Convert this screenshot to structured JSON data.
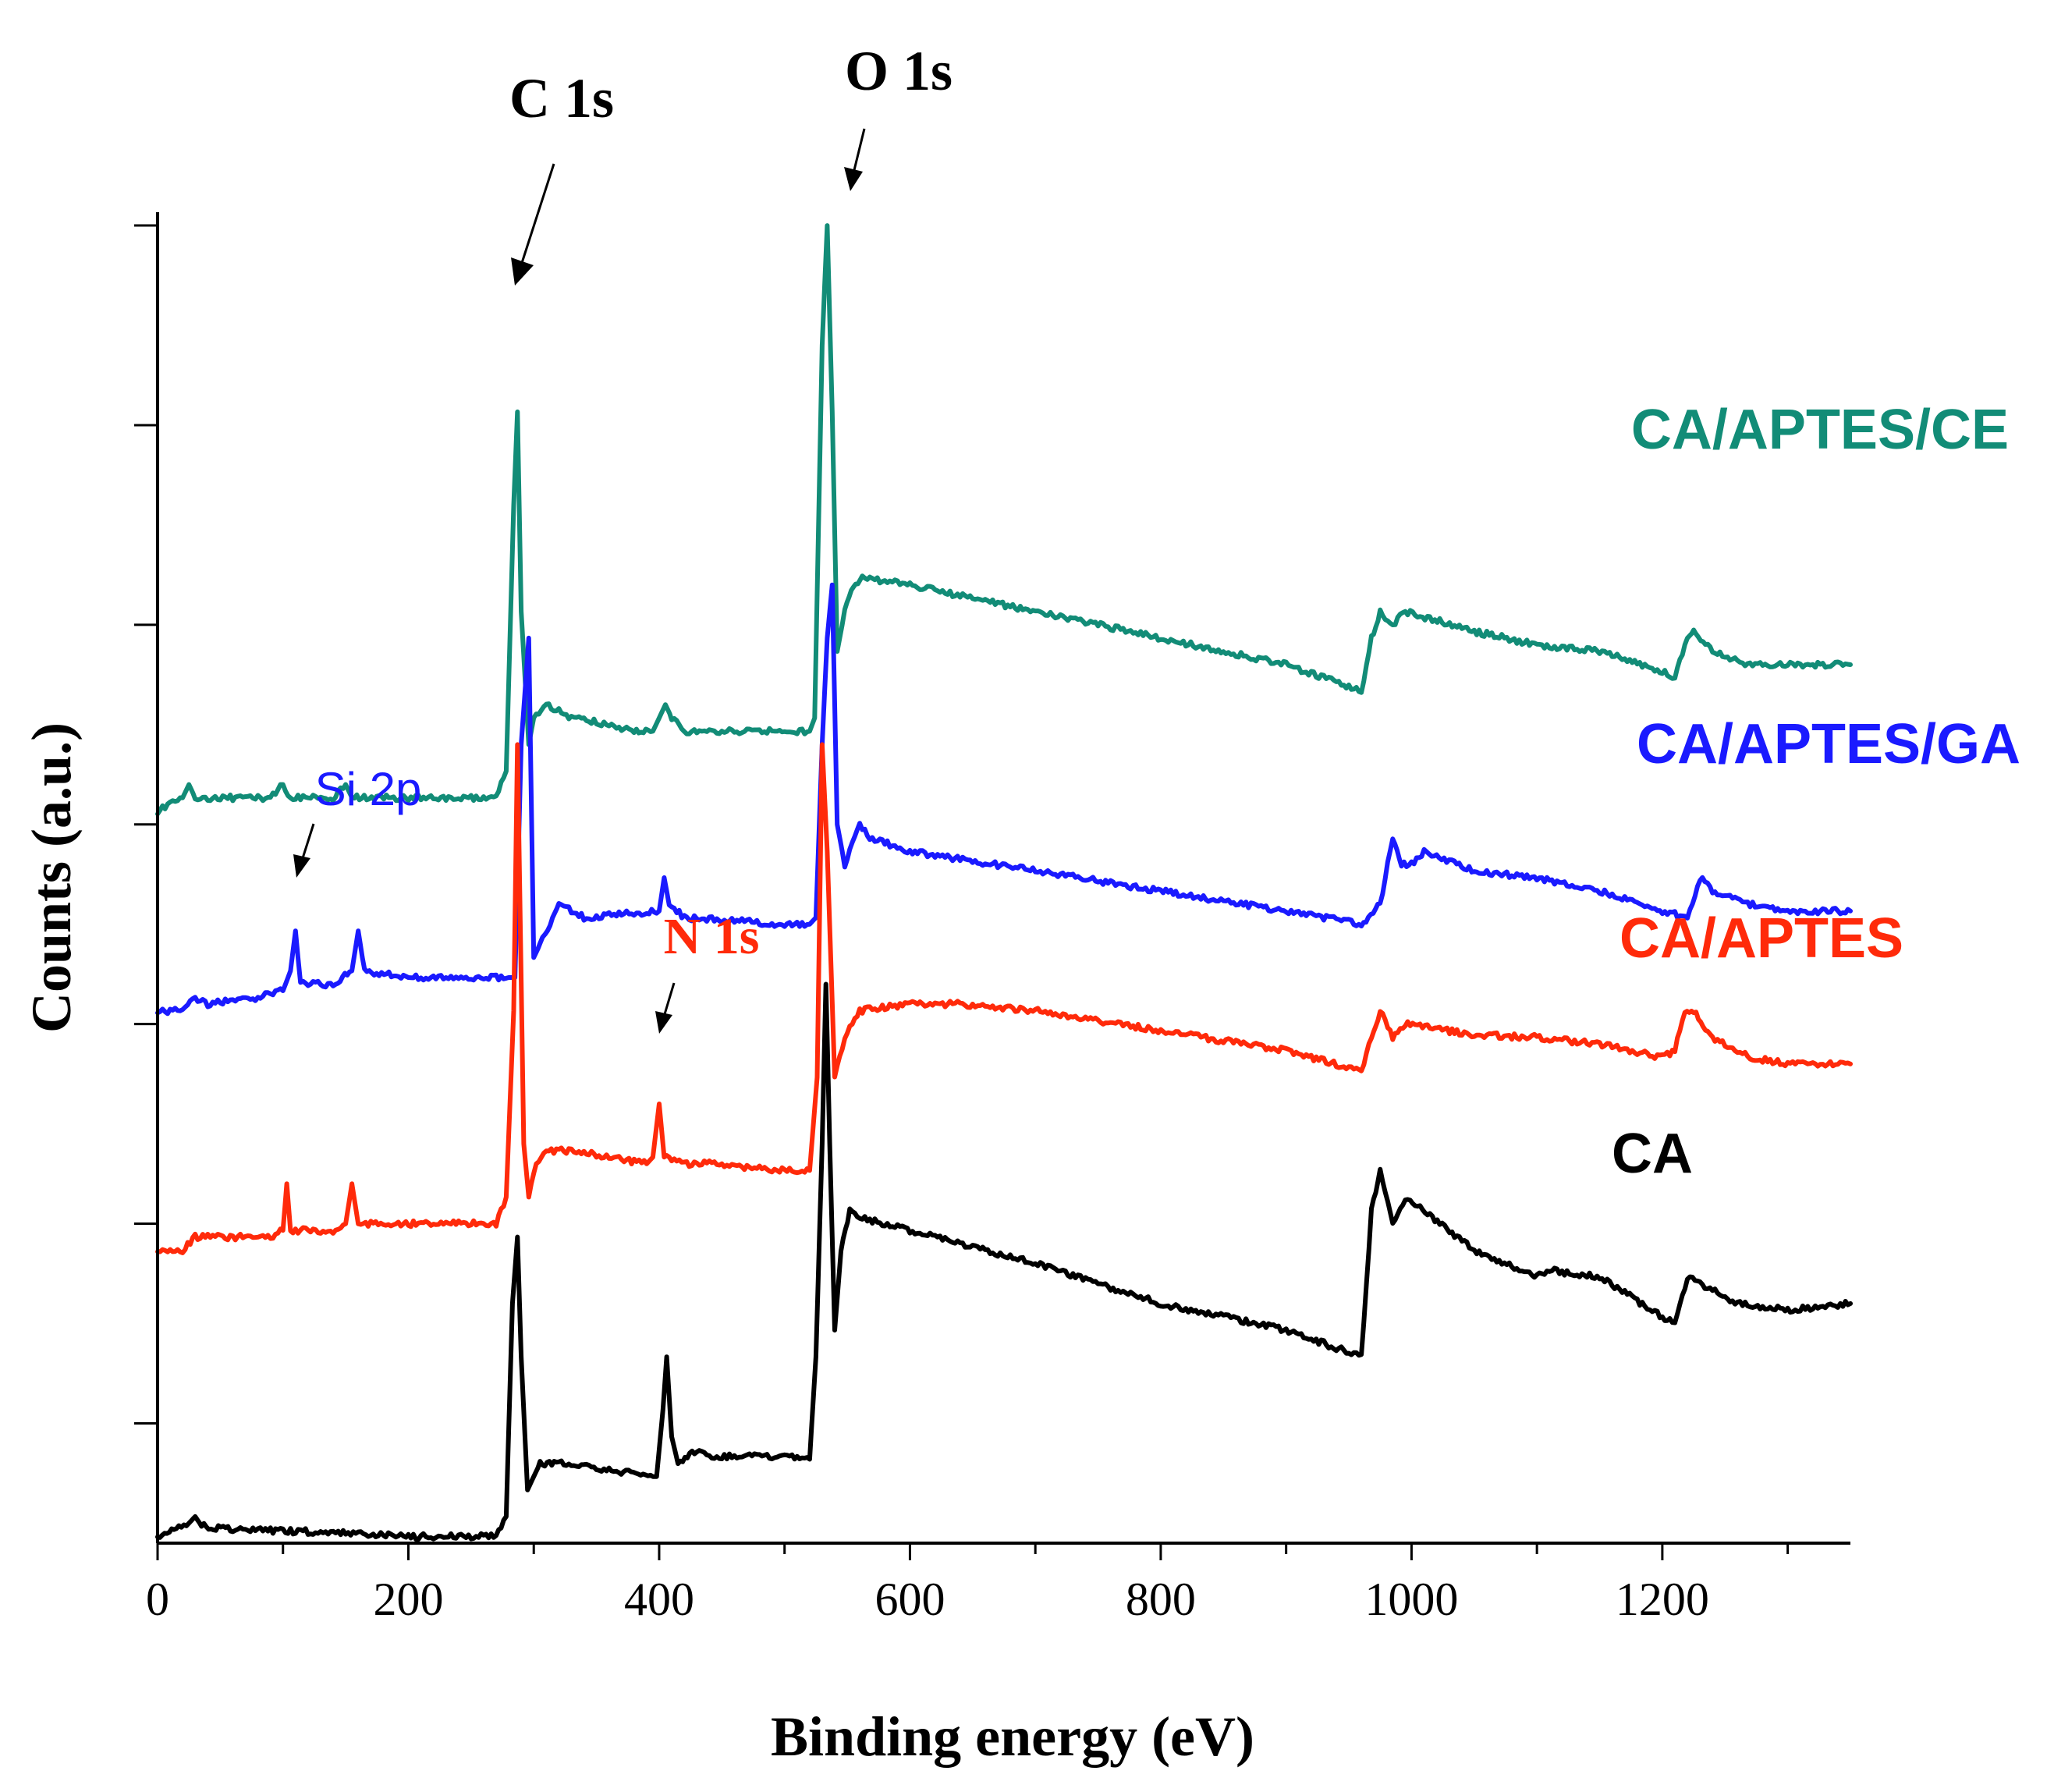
{
  "chart_data": {
    "type": "line",
    "title": "",
    "xlabel": "Binding energy (eV)",
    "ylabel": "Counts (a.u.)",
    "xlim": [
      0,
      1350
    ],
    "ylim": [
      0,
      100
    ],
    "xticks": [
      0,
      200,
      400,
      600,
      800,
      1000,
      1200
    ],
    "y_tick_values": [
      9,
      24,
      39,
      54,
      69,
      84,
      99
    ],
    "series": [
      {
        "name": "CA",
        "color": "#000000",
        "points": [
          [
            0,
            0.5
          ],
          [
            15,
            1
          ],
          [
            25,
            1.5
          ],
          [
            30,
            2
          ],
          [
            35,
            1.3
          ],
          [
            60,
            1
          ],
          [
            150,
            0.8
          ],
          [
            200,
            0.5
          ],
          [
            260,
            0.5
          ],
          [
            270,
            0.5
          ],
          [
            278,
            2
          ],
          [
            283,
            18
          ],
          [
            287,
            23
          ],
          [
            290,
            14
          ],
          [
            295,
            4
          ],
          [
            300,
            5
          ],
          [
            305,
            6
          ],
          [
            320,
            6
          ],
          [
            360,
            5.5
          ],
          [
            395,
            5
          ],
          [
            398,
            5
          ],
          [
            403,
            10
          ],
          [
            406,
            14
          ],
          [
            410,
            8
          ],
          [
            415,
            6
          ],
          [
            430,
            7
          ],
          [
            440,
            6.5
          ],
          [
            470,
            6.5
          ],
          [
            500,
            6.5
          ],
          [
            520,
            6.3
          ],
          [
            525,
            14
          ],
          [
            530,
            30
          ],
          [
            533,
            42
          ],
          [
            536,
            30
          ],
          [
            540,
            16
          ],
          [
            545,
            22
          ],
          [
            552,
            25
          ],
          [
            560,
            24.5
          ],
          [
            600,
            23.5
          ],
          [
            700,
            21
          ],
          [
            800,
            18
          ],
          [
            900,
            16
          ],
          [
            960,
            14
          ],
          [
            968,
            25
          ],
          [
            975,
            28
          ],
          [
            985,
            24
          ],
          [
            995,
            26
          ],
          [
            1050,
            22
          ],
          [
            1100,
            20
          ],
          [
            1110,
            20.5
          ],
          [
            1150,
            20
          ],
          [
            1200,
            17
          ],
          [
            1210,
            16.5
          ],
          [
            1220,
            20
          ],
          [
            1230,
            19.5
          ],
          [
            1260,
            18
          ],
          [
            1300,
            17.5
          ],
          [
            1350,
            18
          ]
        ]
      },
      {
        "name": "CA/APTES",
        "color": "#ff2a0a",
        "points": [
          [
            0,
            22
          ],
          [
            20,
            22
          ],
          [
            30,
            23
          ],
          [
            60,
            23
          ],
          [
            90,
            23
          ],
          [
            100,
            23.5
          ],
          [
            103,
            27
          ],
          [
            106,
            23.5
          ],
          [
            140,
            23.5
          ],
          [
            150,
            24
          ],
          [
            155,
            27
          ],
          [
            160,
            24
          ],
          [
            200,
            24
          ],
          [
            260,
            24
          ],
          [
            270,
            24
          ],
          [
            278,
            26
          ],
          [
            284,
            40
          ],
          [
            287,
            60
          ],
          [
            292,
            30
          ],
          [
            296,
            26
          ],
          [
            300,
            28
          ],
          [
            310,
            29.5
          ],
          [
            330,
            29.5
          ],
          [
            360,
            29
          ],
          [
            390,
            28.5
          ],
          [
            395,
            29
          ],
          [
            400,
            33
          ],
          [
            404,
            29
          ],
          [
            420,
            28.5
          ],
          [
            450,
            28.5
          ],
          [
            490,
            28
          ],
          [
            510,
            28
          ],
          [
            520,
            28
          ],
          [
            526,
            35
          ],
          [
            530,
            60
          ],
          [
            534,
            52
          ],
          [
            540,
            35
          ],
          [
            548,
            38
          ],
          [
            560,
            40
          ],
          [
            600,
            40.5
          ],
          [
            640,
            40.5
          ],
          [
            700,
            40
          ],
          [
            800,
            38.5
          ],
          [
            900,
            37
          ],
          [
            960,
            35.5
          ],
          [
            968,
            38
          ],
          [
            975,
            40
          ],
          [
            985,
            38
          ],
          [
            995,
            39
          ],
          [
            1050,
            38.2
          ],
          [
            1100,
            38
          ],
          [
            1150,
            37.5
          ],
          [
            1200,
            36.5
          ],
          [
            1210,
            37
          ],
          [
            1218,
            40
          ],
          [
            1225,
            40
          ],
          [
            1240,
            38
          ],
          [
            1270,
            36.5
          ],
          [
            1300,
            36
          ],
          [
            1350,
            36
          ]
        ]
      },
      {
        "name": "CA/APTES/GA",
        "color": "#1a1aff",
        "points": [
          [
            0,
            40
          ],
          [
            20,
            40
          ],
          [
            30,
            41
          ],
          [
            40,
            40.5
          ],
          [
            80,
            41
          ],
          [
            100,
            41.5
          ],
          [
            106,
            43
          ],
          [
            110,
            46
          ],
          [
            114,
            42
          ],
          [
            140,
            42
          ],
          [
            155,
            43
          ],
          [
            160,
            46
          ],
          [
            165,
            43
          ],
          [
            200,
            42.5
          ],
          [
            260,
            42.5
          ],
          [
            280,
            42.5
          ],
          [
            285,
            42.5
          ],
          [
            290,
            60
          ],
          [
            296,
            68
          ],
          [
            300,
            44
          ],
          [
            305,
            45
          ],
          [
            315,
            47
          ],
          [
            320,
            48
          ],
          [
            340,
            47
          ],
          [
            400,
            47.5
          ],
          [
            404,
            50
          ],
          [
            408,
            48
          ],
          [
            420,
            47
          ],
          [
            500,
            46.5
          ],
          [
            520,
            46.5
          ],
          [
            525,
            47
          ],
          [
            530,
            60
          ],
          [
            534,
            68
          ],
          [
            538,
            72
          ],
          [
            542,
            54
          ],
          [
            548,
            51
          ],
          [
            560,
            54
          ],
          [
            568,
            53
          ],
          [
            600,
            52
          ],
          [
            700,
            50.5
          ],
          [
            800,
            49
          ],
          [
            900,
            47.5
          ],
          [
            960,
            46.5
          ],
          [
            975,
            48
          ],
          [
            985,
            53
          ],
          [
            992,
            51
          ],
          [
            1000,
            51
          ],
          [
            1010,
            52
          ],
          [
            1050,
            50.5
          ],
          [
            1100,
            50
          ],
          [
            1150,
            49
          ],
          [
            1200,
            47.5
          ],
          [
            1220,
            47
          ],
          [
            1230,
            50
          ],
          [
            1240,
            49
          ],
          [
            1270,
            48
          ],
          [
            1300,
            47.5
          ],
          [
            1350,
            47.5
          ]
        ]
      },
      {
        "name": "CA/APTES/CE",
        "color": "#128c77",
        "points": [
          [
            0,
            55
          ],
          [
            20,
            56
          ],
          [
            25,
            57
          ],
          [
            30,
            56
          ],
          [
            60,
            56
          ],
          [
            90,
            56
          ],
          [
            100,
            57
          ],
          [
            104,
            56
          ],
          [
            140,
            56
          ],
          [
            150,
            57
          ],
          [
            155,
            56
          ],
          [
            200,
            56
          ],
          [
            260,
            56
          ],
          [
            270,
            56
          ],
          [
            278,
            58
          ],
          [
            284,
            78
          ],
          [
            287,
            85
          ],
          [
            290,
            70
          ],
          [
            296,
            60
          ],
          [
            300,
            62
          ],
          [
            310,
            63
          ],
          [
            330,
            62
          ],
          [
            360,
            61.5
          ],
          [
            380,
            61
          ],
          [
            395,
            61
          ],
          [
            400,
            62
          ],
          [
            405,
            63
          ],
          [
            410,
            62
          ],
          [
            420,
            61
          ],
          [
            450,
            61
          ],
          [
            500,
            61
          ],
          [
            520,
            61
          ],
          [
            524,
            62
          ],
          [
            530,
            90
          ],
          [
            534,
            99
          ],
          [
            538,
            85
          ],
          [
            542,
            67
          ],
          [
            548,
            70
          ],
          [
            555,
            72
          ],
          [
            562,
            72.5
          ],
          [
            600,
            72
          ],
          [
            700,
            70
          ],
          [
            800,
            68
          ],
          [
            900,
            66
          ],
          [
            960,
            64
          ],
          [
            968,
            68
          ],
          [
            975,
            70
          ],
          [
            985,
            69
          ],
          [
            995,
            70
          ],
          [
            1050,
            68.5
          ],
          [
            1100,
            67.5
          ],
          [
            1150,
            67
          ],
          [
            1200,
            65.5
          ],
          [
            1210,
            65
          ],
          [
            1220,
            68
          ],
          [
            1225,
            68.5
          ],
          [
            1240,
            67
          ],
          [
            1270,
            66
          ],
          [
            1300,
            66
          ],
          [
            1350,
            66
          ]
        ]
      }
    ],
    "series_labels": [
      {
        "name": "CA/APTES/CE",
        "color": "#128c77"
      },
      {
        "name": "CA/APTES/GA",
        "color": "#1a1aff"
      },
      {
        "name": "CA/APTES",
        "color": "#ff2a0a"
      },
      {
        "name": "CA",
        "color": "#000000"
      }
    ],
    "annotations": [
      {
        "text": "C 1s",
        "color": "#000000"
      },
      {
        "text": "O 1s",
        "color": "#000000"
      },
      {
        "text": "Si 2p",
        "color": "#1a1aff"
      },
      {
        "text": "N 1s",
        "color": "#ff2a0a"
      }
    ]
  }
}
